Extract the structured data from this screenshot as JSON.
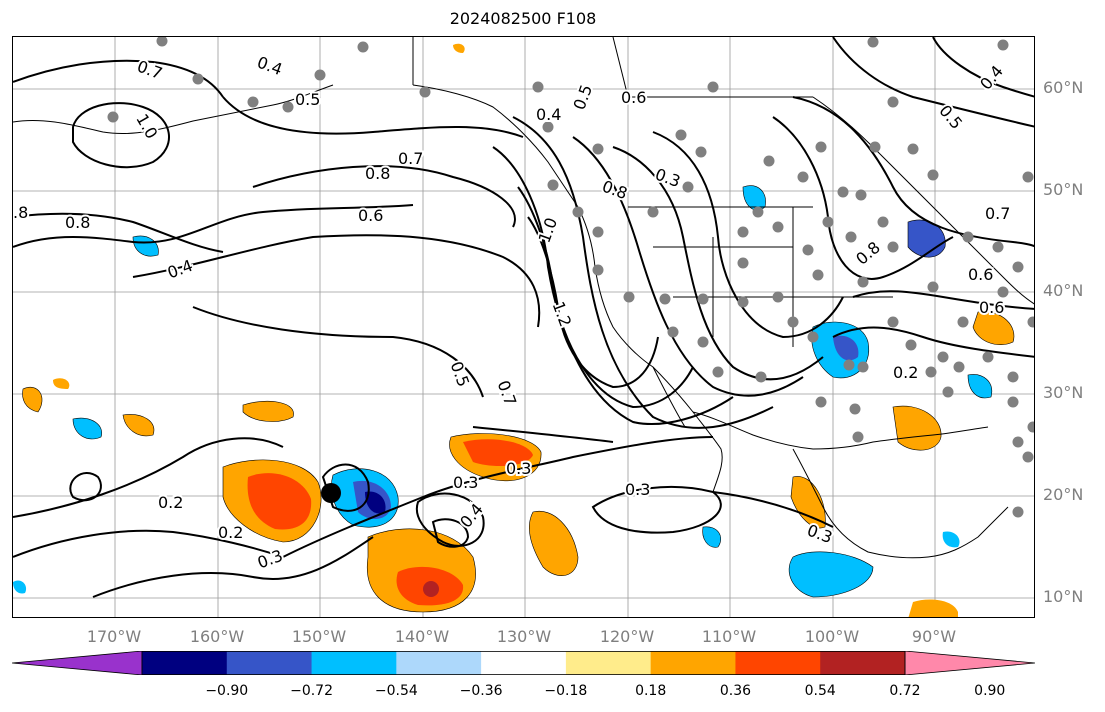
{
  "title": "2024082500 F108",
  "map": {
    "lon_range": [
      -180,
      -80
    ],
    "lat_range": [
      8,
      65
    ],
    "lon_labels": [
      "170°W",
      "160°W",
      "150°W",
      "140°W",
      "130°W",
      "120°W",
      "110°W",
      "100°W",
      "90°W"
    ],
    "lat_labels": [
      "60°N",
      "50°N",
      "40°N",
      "30°N",
      "20°N",
      "10°N"
    ],
    "contour_labels": [
      "0.7",
      "0.4",
      "0.5",
      "1.0",
      ".8",
      "0.8",
      "0.7",
      "0.8",
      "0.6",
      "0.4",
      "0.4",
      "0.5",
      "0.6",
      "0.8",
      "0.3",
      "1.0",
      "1.2",
      "0.5",
      "0.7",
      "0.3",
      "0.3",
      "0.3",
      "0.4",
      "0.2",
      "0.3",
      "0.3",
      "0.2",
      "0.7",
      "0.6",
      "0.8",
      "0.6",
      "0.5",
      "0.4",
      "0.2"
    ],
    "colors": {
      "contour": "#000000",
      "coast": "#000000",
      "grid": "#9a9a9a",
      "station": "#808080",
      "storm_marker": "#000000"
    }
  },
  "colorbar": {
    "tick_labels": [
      "−0.90",
      "−0.72",
      "−0.54",
      "−0.36",
      "−0.18",
      "0.18",
      "0.36",
      "0.54",
      "0.72",
      "0.90"
    ],
    "boundaries": [
      -0.9,
      -0.72,
      -0.54,
      -0.36,
      -0.18,
      0.18,
      0.36,
      0.54,
      0.72,
      0.9
    ],
    "colors": [
      "#9932cc",
      "#000080",
      "#3655c8",
      "#00bfff",
      "#add8fb",
      "#ffffff",
      "#ffec8b",
      "#ffa500",
      "#ff4500",
      "#b22222",
      "#ff88aa"
    ]
  }
}
